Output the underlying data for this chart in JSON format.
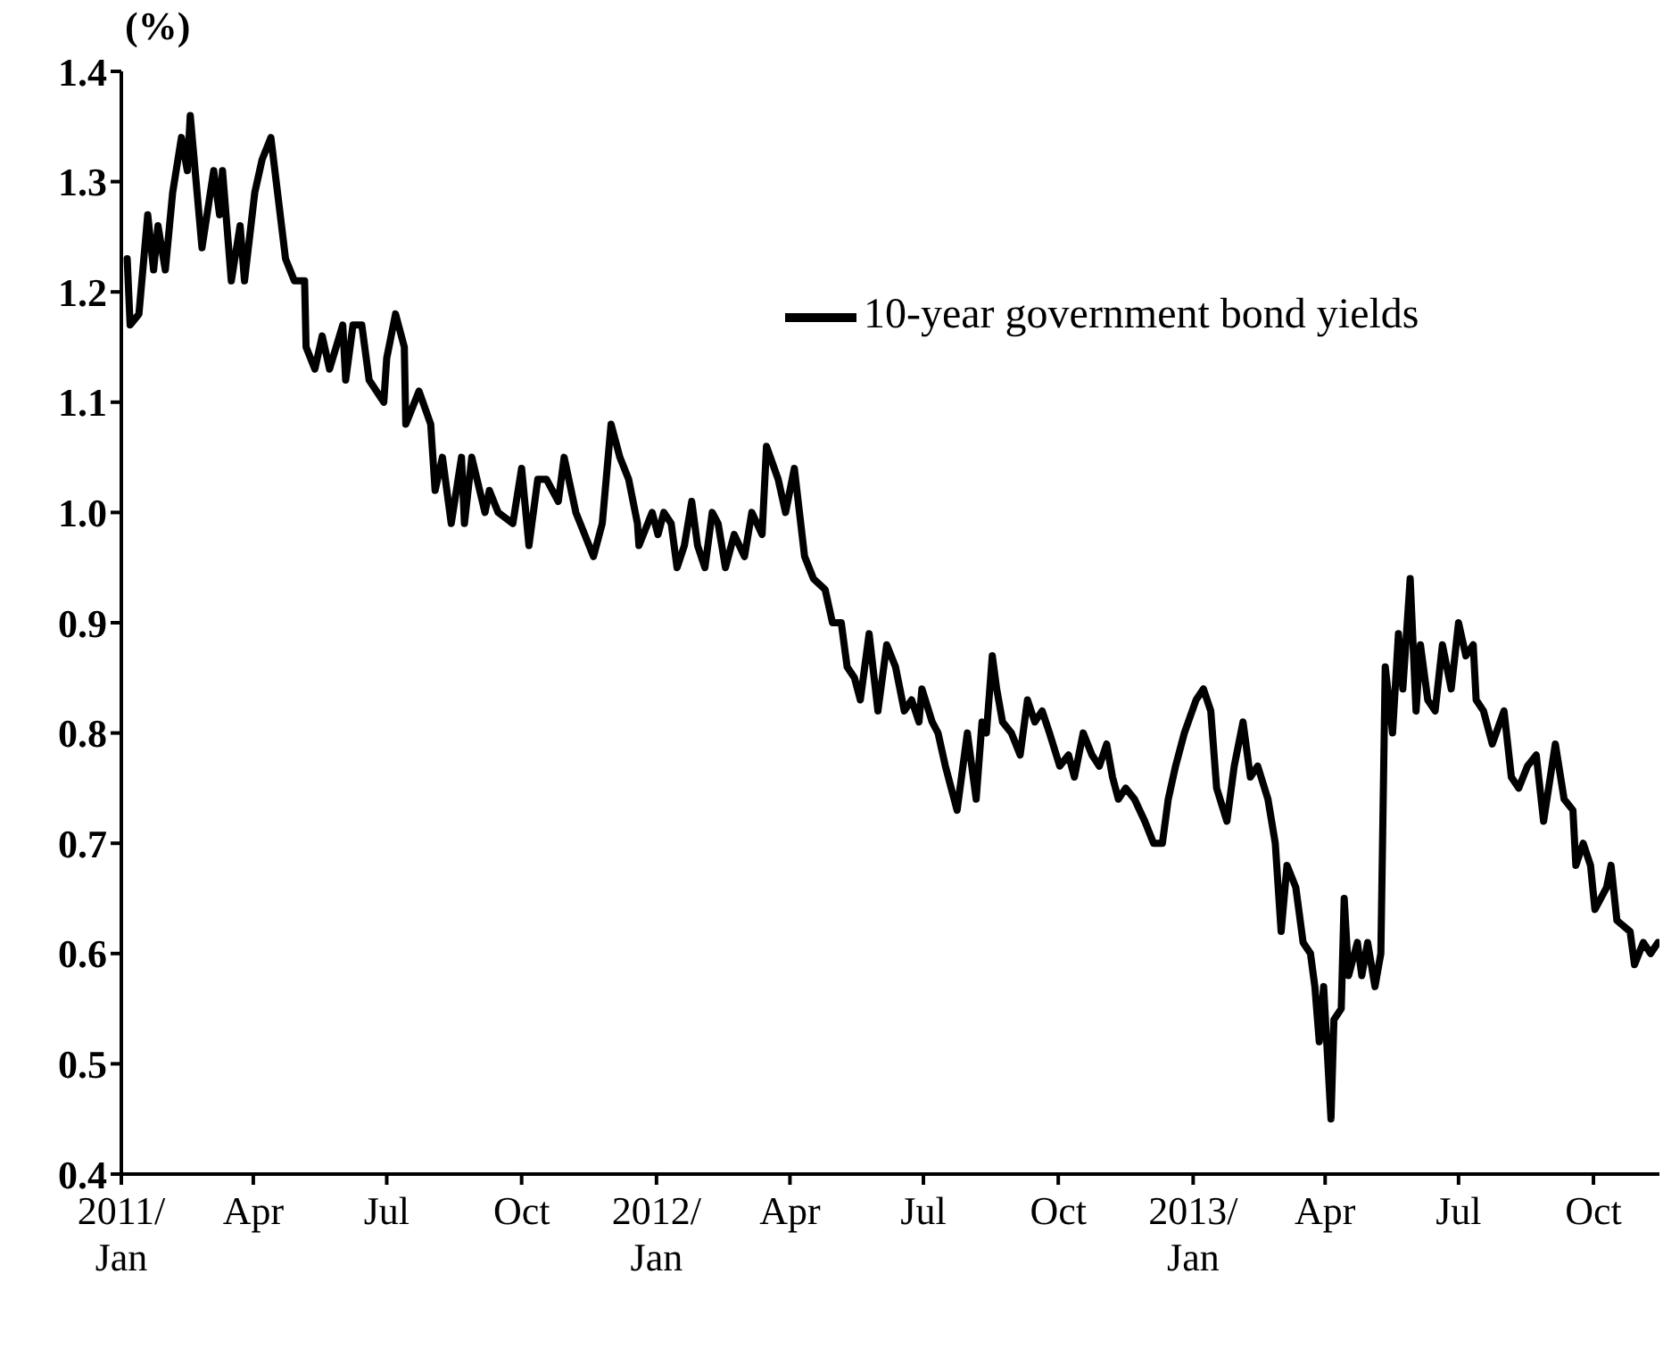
{
  "chart_data": {
    "type": "line",
    "ylabel": "(%)",
    "x": [
      "2011-01-05",
      "2011-01-07",
      "2011-01-13",
      "2011-01-19",
      "2011-01-23",
      "2011-01-26",
      "2011-01-31",
      "2011-02-05",
      "2011-02-11",
      "2011-02-15",
      "2011-02-17",
      "2011-02-25",
      "2011-03-05",
      "2011-03-09",
      "2011-03-11",
      "2011-03-17",
      "2011-03-23",
      "2011-03-26",
      "2011-04-02",
      "2011-04-07",
      "2011-04-13",
      "2011-04-23",
      "2011-04-29",
      "2011-05-06",
      "2011-05-07",
      "2011-05-13",
      "2011-05-18",
      "2011-05-23",
      "2011-06-01",
      "2011-06-03",
      "2011-06-08",
      "2011-06-14",
      "2011-06-19",
      "2011-06-29",
      "2011-07-01",
      "2011-07-07",
      "2011-07-13",
      "2011-07-14",
      "2011-07-23",
      "2011-07-31",
      "2011-08-03",
      "2011-08-08",
      "2011-08-14",
      "2011-08-21",
      "2011-08-23",
      "2011-08-28",
      "2011-09-06",
      "2011-09-09",
      "2011-09-15",
      "2011-09-25",
      "2011-10-01",
      "2011-10-06",
      "2011-10-12",
      "2011-10-18",
      "2011-10-26",
      "2011-10-30",
      "2011-11-07",
      "2011-11-13",
      "2011-11-19",
      "2011-11-25",
      "2011-12-01",
      "2011-12-07",
      "2011-12-13",
      "2011-12-19",
      "2011-12-20",
      "2011-12-29",
      "2012-01-02",
      "2012-01-06",
      "2012-01-11",
      "2012-01-15",
      "2012-01-20",
      "2012-01-25",
      "2012-01-29",
      "2012-02-03",
      "2012-02-08",
      "2012-02-12",
      "2012-02-17",
      "2012-02-23",
      "2012-03-01",
      "2012-03-06",
      "2012-03-13",
      "2012-03-16",
      "2012-03-24",
      "2012-03-29",
      "2012-04-04",
      "2012-04-11",
      "2012-04-17",
      "2012-04-25",
      "2012-04-30",
      "2012-05-06",
      "2012-05-10",
      "2012-05-15",
      "2012-05-19",
      "2012-05-25",
      "2012-05-31",
      "2012-06-06",
      "2012-06-12",
      "2012-06-18",
      "2012-06-23",
      "2012-06-28",
      "2012-06-30",
      "2012-07-07",
      "2012-07-11",
      "2012-07-16",
      "2012-07-24",
      "2012-07-31",
      "2012-08-06",
      "2012-08-10",
      "2012-08-13",
      "2012-08-17",
      "2012-08-20",
      "2012-08-24",
      "2012-08-30",
      "2012-09-05",
      "2012-09-10",
      "2012-09-15",
      "2012-09-20",
      "2012-09-25",
      "2012-10-02",
      "2012-10-08",
      "2012-10-12",
      "2012-10-18",
      "2012-10-24",
      "2012-10-29",
      "2012-11-03",
      "2012-11-07",
      "2012-11-11",
      "2012-11-16",
      "2012-11-22",
      "2012-11-29",
      "2012-12-05",
      "2012-12-11",
      "2012-12-15",
      "2012-12-20",
      "2012-12-26",
      "2013-01-03",
      "2013-01-08",
      "2013-01-13",
      "2013-01-17",
      "2013-01-24",
      "2013-01-29",
      "2013-02-04",
      "2013-02-09",
      "2013-02-14",
      "2013-02-21",
      "2013-02-26",
      "2013-03-02",
      "2013-03-06",
      "2013-03-12",
      "2013-03-17",
      "2013-03-22",
      "2013-03-25",
      "2013-03-28",
      "2013-03-31",
      "2013-04-05",
      "2013-04-07",
      "2013-04-12",
      "2013-04-14",
      "2013-04-17",
      "2013-04-23",
      "2013-04-26",
      "2013-04-30",
      "2013-05-05",
      "2013-05-09",
      "2013-05-12",
      "2013-05-17",
      "2013-05-21",
      "2013-05-24",
      "2013-05-29",
      "2013-06-02",
      "2013-06-05",
      "2013-06-10",
      "2013-06-15",
      "2013-06-20",
      "2013-06-26",
      "2013-07-01",
      "2013-07-06",
      "2013-07-11",
      "2013-07-13",
      "2013-07-18",
      "2013-07-24",
      "2013-08-01",
      "2013-08-06",
      "2013-08-11",
      "2013-08-17",
      "2013-08-23",
      "2013-08-28",
      "2013-09-05",
      "2013-09-11",
      "2013-09-17",
      "2013-09-19",
      "2013-09-24",
      "2013-09-29",
      "2013-10-02",
      "2013-10-10",
      "2013-10-13",
      "2013-10-17",
      "2013-10-26",
      "2013-10-29",
      "2013-11-04",
      "2013-11-09",
      "2013-11-14"
    ],
    "series": [
      {
        "name": "10-year government bond yields",
        "color": "#000000",
        "values": [
          1.23,
          1.17,
          1.18,
          1.27,
          1.22,
          1.26,
          1.22,
          1.29,
          1.34,
          1.31,
          1.36,
          1.24,
          1.31,
          1.27,
          1.31,
          1.21,
          1.26,
          1.21,
          1.29,
          1.32,
          1.34,
          1.23,
          1.21,
          1.21,
          1.15,
          1.13,
          1.16,
          1.13,
          1.17,
          1.12,
          1.17,
          1.17,
          1.12,
          1.1,
          1.14,
          1.18,
          1.15,
          1.08,
          1.11,
          1.08,
          1.02,
          1.05,
          0.99,
          1.05,
          0.99,
          1.05,
          1.0,
          1.02,
          1.0,
          0.99,
          1.04,
          0.97,
          1.03,
          1.03,
          1.01,
          1.05,
          1.0,
          0.98,
          0.96,
          0.99,
          1.08,
          1.05,
          1.03,
          0.99,
          0.97,
          1.0,
          0.98,
          1.0,
          0.99,
          0.95,
          0.97,
          1.01,
          0.97,
          0.95,
          1.0,
          0.99,
          0.95,
          0.98,
          0.96,
          1.0,
          0.98,
          1.06,
          1.03,
          1.0,
          1.04,
          0.96,
          0.94,
          0.93,
          0.9,
          0.9,
          0.86,
          0.85,
          0.83,
          0.89,
          0.82,
          0.88,
          0.86,
          0.82,
          0.83,
          0.81,
          0.84,
          0.81,
          0.8,
          0.77,
          0.73,
          0.8,
          0.74,
          0.81,
          0.8,
          0.87,
          0.84,
          0.81,
          0.8,
          0.78,
          0.83,
          0.81,
          0.82,
          0.8,
          0.77,
          0.78,
          0.76,
          0.8,
          0.78,
          0.77,
          0.79,
          0.76,
          0.74,
          0.75,
          0.74,
          0.72,
          0.7,
          0.7,
          0.74,
          0.77,
          0.8,
          0.83,
          0.84,
          0.82,
          0.75,
          0.72,
          0.77,
          0.81,
          0.76,
          0.77,
          0.74,
          0.7,
          0.62,
          0.68,
          0.66,
          0.61,
          0.6,
          0.57,
          0.52,
          0.57,
          0.45,
          0.54,
          0.55,
          0.65,
          0.58,
          0.61,
          0.58,
          0.61,
          0.57,
          0.6,
          0.86,
          0.8,
          0.89,
          0.84,
          0.94,
          0.82,
          0.88,
          0.83,
          0.82,
          0.88,
          0.84,
          0.9,
          0.87,
          0.88,
          0.83,
          0.82,
          0.79,
          0.82,
          0.76,
          0.75,
          0.77,
          0.78,
          0.72,
          0.79,
          0.74,
          0.73,
          0.68,
          0.7,
          0.68,
          0.64,
          0.66,
          0.68,
          0.63,
          0.62,
          0.59,
          0.61,
          0.6,
          0.61
        ]
      }
    ],
    "xlim": [
      "2011-01-01",
      "2013-11-15"
    ],
    "xticks": [
      {
        "value": "2011-01-01",
        "label": "2011/\nJan"
      },
      {
        "value": "2011-04-01",
        "label": "Apr"
      },
      {
        "value": "2011-07-01",
        "label": "Jul"
      },
      {
        "value": "2011-10-01",
        "label": "Oct"
      },
      {
        "value": "2012-01-01",
        "label": "2012/\nJan"
      },
      {
        "value": "2012-04-01",
        "label": "Apr"
      },
      {
        "value": "2012-07-01",
        "label": "Jul"
      },
      {
        "value": "2012-10-01",
        "label": "Oct"
      },
      {
        "value": "2013-01-01",
        "label": "2013/\nJan"
      },
      {
        "value": "2013-04-01",
        "label": "Apr"
      },
      {
        "value": "2013-07-01",
        "label": "Jul"
      },
      {
        "value": "2013-10-01",
        "label": "Oct"
      }
    ],
    "ylim": [
      0.4,
      1.4
    ],
    "yticks": [
      {
        "value": 0.4,
        "label": "0.4"
      },
      {
        "value": 0.5,
        "label": "0.5"
      },
      {
        "value": 0.6,
        "label": "0.6"
      },
      {
        "value": 0.7,
        "label": "0.7"
      },
      {
        "value": 0.8,
        "label": "0.8"
      },
      {
        "value": 0.9,
        "label": "0.9"
      },
      {
        "value": 1.0,
        "label": "1.0"
      },
      {
        "value": 1.1,
        "label": "1.1"
      },
      {
        "value": 1.2,
        "label": "1.2"
      },
      {
        "value": 1.3,
        "label": "1.3"
      },
      {
        "value": 1.4,
        "label": "1.4"
      }
    ],
    "legend": "top right",
    "grid": false,
    "marker": "none",
    "line_style": "solid"
  }
}
